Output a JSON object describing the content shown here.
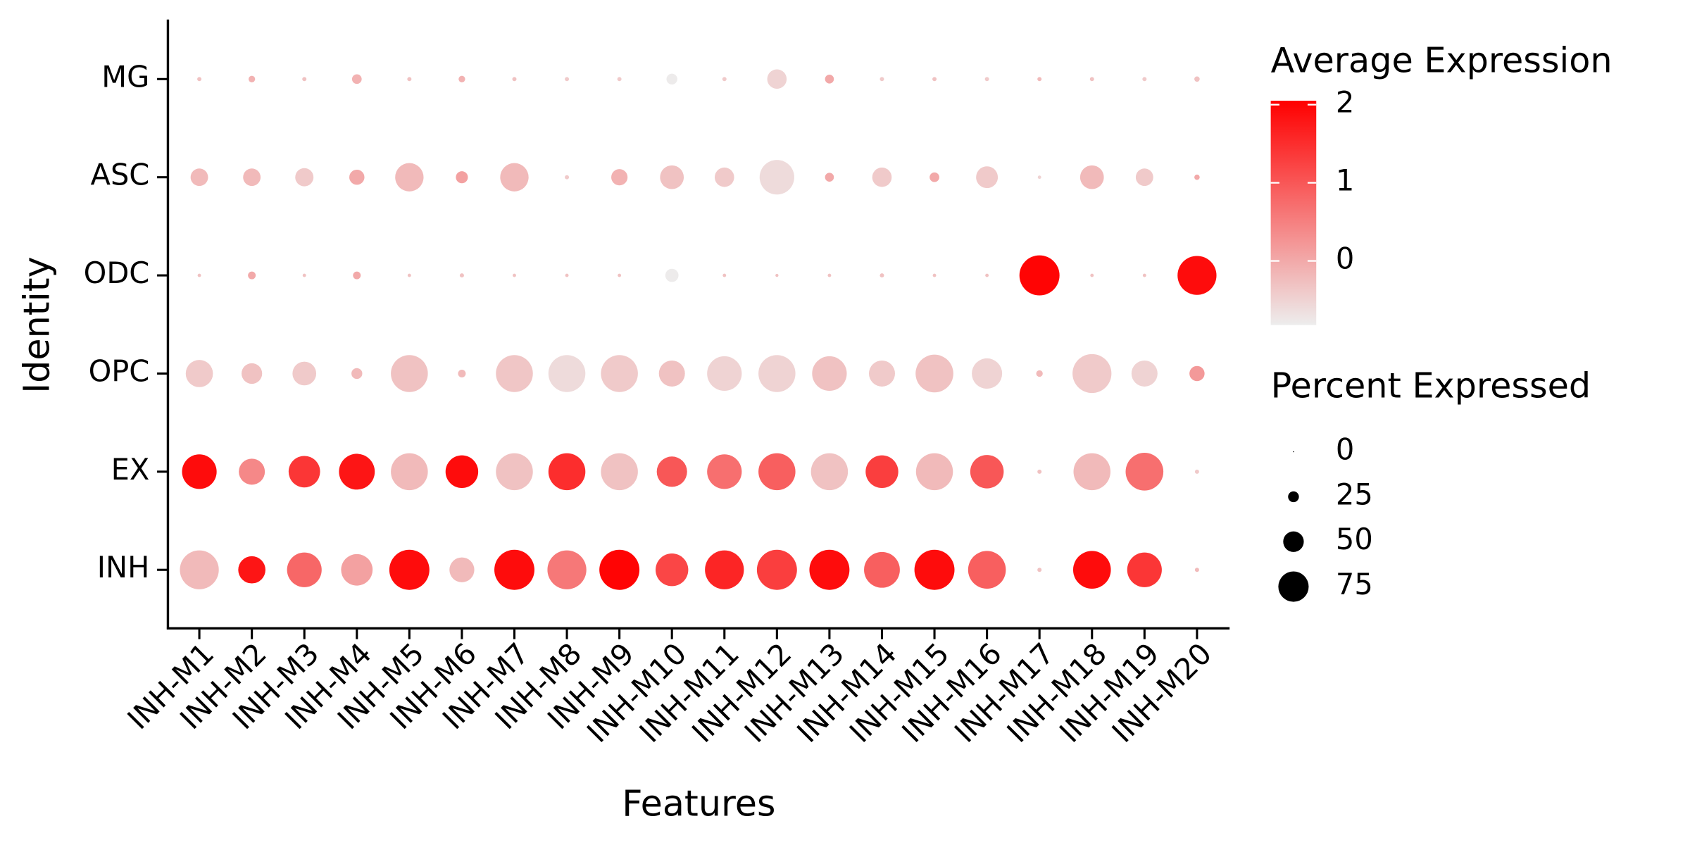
{
  "chart_data": {
    "type": "dot",
    "x_label": "Features",
    "y_label": "Identity",
    "categories": [
      "INH-M1",
      "INH-M2",
      "INH-M3",
      "INH-M4",
      "INH-M5",
      "INH-M6",
      "INH-M7",
      "INH-M8",
      "INH-M9",
      "INH-M10",
      "INH-M11",
      "INH-M12",
      "INH-M13",
      "INH-M14",
      "INH-M15",
      "INH-M16",
      "INH-M17",
      "INH-M18",
      "INH-M19",
      "INH-M20"
    ],
    "rows": [
      {
        "name": "INH",
        "expression": [
          -0.2,
          1.8,
          0.8,
          0.1,
          1.9,
          -0.2,
          1.9,
          0.6,
          2.0,
          1.2,
          1.6,
          1.3,
          1.9,
          0.9,
          1.9,
          0.9,
          -0.3,
          1.9,
          1.4,
          -0.2
        ],
        "percent": [
          97,
          67,
          86,
          78,
          100,
          61,
          100,
          97,
          100,
          81,
          97,
          100,
          100,
          89,
          100,
          94,
          8,
          94,
          86,
          8
        ]
      },
      {
        "name": "EX",
        "expression": [
          1.9,
          0.4,
          1.4,
          1.8,
          -0.2,
          1.9,
          -0.3,
          1.5,
          -0.3,
          1.0,
          0.7,
          0.9,
          -0.3,
          1.3,
          -0.2,
          1.0,
          -0.3,
          -0.2,
          0.7,
          -0.4
        ],
        "percent": [
          86,
          64,
          78,
          89,
          92,
          81,
          92,
          92,
          92,
          75,
          86,
          92,
          92,
          81,
          92,
          83,
          8,
          92,
          94,
          8
        ]
      },
      {
        "name": "OPC",
        "expression": [
          -0.4,
          -0.3,
          -0.4,
          -0.2,
          -0.3,
          -0.2,
          -0.35,
          -0.6,
          -0.4,
          -0.3,
          -0.5,
          -0.5,
          -0.3,
          -0.4,
          -0.3,
          -0.5,
          -0.2,
          -0.4,
          -0.5,
          0.2
        ],
        "percent": [
          67,
          50,
          58,
          25,
          92,
          17,
          92,
          92,
          92,
          64,
          86,
          92,
          86,
          64,
          94,
          75,
          14,
          97,
          64,
          36
        ]
      },
      {
        "name": "ODC",
        "expression": [
          -0.3,
          0,
          -0.3,
          0,
          -0.3,
          -0.3,
          -0.3,
          -0.3,
          -0.3,
          -0.8,
          -0.3,
          -0.3,
          -0.3,
          -0.3,
          -0.3,
          -0.3,
          2.0,
          -0.3,
          -0.3,
          1.9
        ],
        "percent": [
          6,
          17,
          6,
          17,
          6,
          8,
          6,
          6,
          6,
          31,
          6,
          5,
          6,
          8,
          6,
          6,
          100,
          6,
          6,
          97
        ]
      },
      {
        "name": "ASC",
        "expression": [
          -0.2,
          -0.2,
          -0.4,
          0,
          -0.2,
          0.1,
          -0.2,
          -0.4,
          -0.1,
          -0.3,
          -0.4,
          -0.6,
          0,
          -0.4,
          0,
          -0.4,
          -0.5,
          -0.2,
          -0.4,
          0
        ],
        "percent": [
          42,
          42,
          44,
          36,
          70,
          28,
          70,
          8,
          39,
          58,
          47,
          86,
          20,
          47,
          22,
          53,
          6,
          58,
          42,
          11
        ]
      },
      {
        "name": "MG",
        "expression": [
          -0.3,
          -0.1,
          -0.3,
          -0.1,
          -0.3,
          -0.1,
          -0.3,
          -0.4,
          -0.4,
          -0.8,
          -0.4,
          -0.5,
          0,
          -0.4,
          -0.3,
          -0.4,
          -0.2,
          -0.3,
          -0.4,
          -0.3
        ],
        "percent": [
          8,
          14,
          8,
          22,
          8,
          14,
          8,
          8,
          8,
          25,
          8,
          47,
          20,
          8,
          8,
          8,
          8,
          8,
          8,
          11
        ]
      }
    ],
    "color_legend_title": "Average Expression",
    "color_low": "#ededed",
    "color_high": "#ff0000",
    "clim": [
      -0.82,
      2.05
    ],
    "cticks": [
      0,
      1,
      2
    ],
    "size_legend_title": "Percent Expressed",
    "size_ticks": [
      0,
      25,
      50,
      75
    ]
  }
}
